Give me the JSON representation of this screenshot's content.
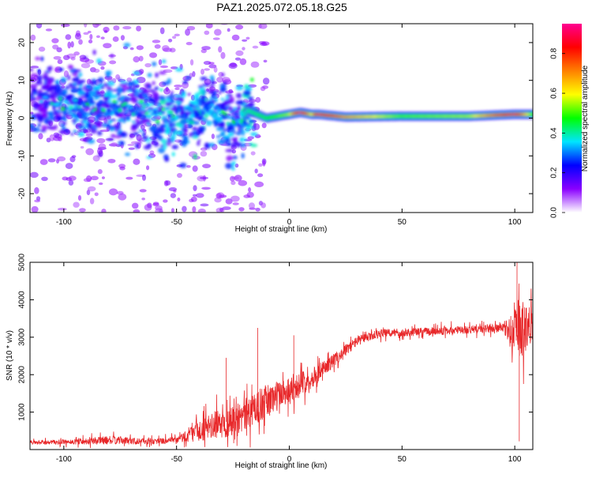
{
  "title": "PAZ1.2025.072.05.18.G25",
  "chart_data": [
    {
      "type": "heatmap",
      "xlabel": "Height of straight line (km)",
      "ylabel": "Frequency (Hz)",
      "xlim": [
        -115,
        108
      ],
      "ylim": [
        -25,
        25
      ],
      "xticks": [
        -100,
        -50,
        0,
        50,
        100
      ],
      "yticks": [
        -20,
        -10,
        0,
        10,
        20
      ],
      "colorbar": {
        "label": "Normalized spectral amplitude",
        "range": [
          0.0,
          0.95
        ],
        "ticks": [
          0.0,
          0.2,
          0.4,
          0.6,
          0.8
        ],
        "colors": [
          "#ffffff",
          "#8a00ff",
          "#0000ff",
          "#00e5ff",
          "#00ff00",
          "#ffff00",
          "#ff8000",
          "#ff0000",
          "#ff0090"
        ]
      },
      "ridge": [
        {
          "x": -110,
          "y": 5,
          "amp": 0.25
        },
        {
          "x": -95,
          "y": 4,
          "amp": 0.3
        },
        {
          "x": -80,
          "y": 3,
          "amp": 0.3
        },
        {
          "x": -65,
          "y": 2,
          "amp": 0.3
        },
        {
          "x": -50,
          "y": 0,
          "amp": 0.35
        },
        {
          "x": -40,
          "y": 0,
          "amp": 0.35
        },
        {
          "x": -35,
          "y": 3,
          "amp": 0.3
        },
        {
          "x": -25,
          "y": -2,
          "amp": 0.3
        },
        {
          "x": -18,
          "y": 2,
          "amp": 0.4
        },
        {
          "x": -10,
          "y": 0,
          "amp": 0.45
        },
        {
          "x": 0,
          "y": 1,
          "amp": 0.55
        },
        {
          "x": 5,
          "y": 1.5,
          "amp": 0.95
        },
        {
          "x": 10,
          "y": 1,
          "amp": 0.6
        },
        {
          "x": 13,
          "y": 1,
          "amp": 0.9
        },
        {
          "x": 25,
          "y": 0.3,
          "amp": 0.7
        },
        {
          "x": 50,
          "y": 0.5,
          "amp": 0.5
        },
        {
          "x": 80,
          "y": 0.5,
          "amp": 0.55
        },
        {
          "x": 100,
          "y": 1,
          "amp": 0.9
        },
        {
          "x": 108,
          "y": 1,
          "amp": 0.5
        }
      ]
    },
    {
      "type": "line",
      "xlabel": "Height of straight line (km)",
      "ylabel": "SNR (10 * v/v)",
      "xlim": [
        -115,
        108
      ],
      "ylim": [
        0,
        5000
      ],
      "xticks": [
        -100,
        -50,
        0,
        50,
        100
      ],
      "yticks": [
        1000,
        2000,
        3000,
        4000,
        5000
      ],
      "color": "#e8282a",
      "envelope": [
        {
          "x": -115,
          "mean": 180,
          "spread": 120
        },
        {
          "x": -100,
          "mean": 200,
          "spread": 150
        },
        {
          "x": -80,
          "mean": 250,
          "spread": 250
        },
        {
          "x": -60,
          "mean": 220,
          "spread": 180
        },
        {
          "x": -50,
          "mean": 250,
          "spread": 200
        },
        {
          "x": -40,
          "mean": 500,
          "spread": 600
        },
        {
          "x": -30,
          "mean": 700,
          "spread": 900
        },
        {
          "x": -20,
          "mean": 900,
          "spread": 1000
        },
        {
          "x": -10,
          "mean": 1300,
          "spread": 1000
        },
        {
          "x": 0,
          "mean": 1600,
          "spread": 800
        },
        {
          "x": 10,
          "mean": 1900,
          "spread": 600
        },
        {
          "x": 20,
          "mean": 2400,
          "spread": 400
        },
        {
          "x": 30,
          "mean": 2900,
          "spread": 300
        },
        {
          "x": 40,
          "mean": 3100,
          "spread": 250
        },
        {
          "x": 60,
          "mean": 3150,
          "spread": 250
        },
        {
          "x": 80,
          "mean": 3200,
          "spread": 250
        },
        {
          "x": 95,
          "mean": 3250,
          "spread": 250
        },
        {
          "x": 100,
          "mean": 3100,
          "spread": 1400
        },
        {
          "x": 103,
          "mean": 3200,
          "spread": 1800
        },
        {
          "x": 108,
          "mean": 3400,
          "spread": 1000
        }
      ],
      "spikes": [
        {
          "x": -14,
          "y": 3250
        },
        {
          "x": 2,
          "y": 3050
        },
        {
          "x": -28,
          "y": 2450
        },
        {
          "x": 101,
          "y": 5000
        },
        {
          "x": 102,
          "y": 220
        }
      ]
    }
  ]
}
